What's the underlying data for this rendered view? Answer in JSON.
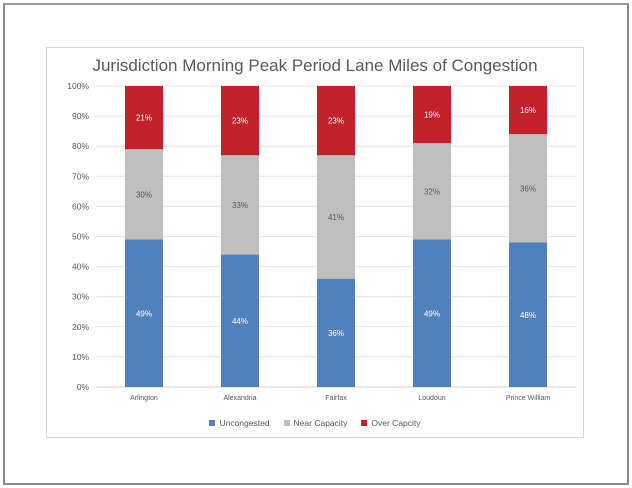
{
  "chart_data": {
    "type": "bar",
    "stacked": true,
    "title": "Jurisdiction Morning Peak Period Lane Miles of Congestion",
    "xlabel": "",
    "ylabel": "",
    "ylim": [
      0,
      100
    ],
    "yticks": [
      "0%",
      "10%",
      "20%",
      "30%",
      "40%",
      "50%",
      "60%",
      "70%",
      "80%",
      "90%",
      "100%"
    ],
    "grid": true,
    "legend_position": "bottom",
    "categories": [
      "Arlington",
      "Alexandria",
      "Fairfax",
      "Loudoun",
      "Prince William"
    ],
    "series": [
      {
        "name": "Uncongested",
        "color": "#4f81bd",
        "label_color": "#ffffff",
        "values": [
          49,
          44,
          36,
          49,
          48
        ]
      },
      {
        "name": "Near Capacity",
        "color": "#bfbfbf",
        "label_color": "#595959",
        "values": [
          30,
          33,
          41,
          32,
          36
        ]
      },
      {
        "name": "Over Capcity",
        "color": "#c0212a",
        "label_color": "#ffffff",
        "values": [
          21,
          23,
          23,
          19,
          16
        ]
      }
    ]
  }
}
